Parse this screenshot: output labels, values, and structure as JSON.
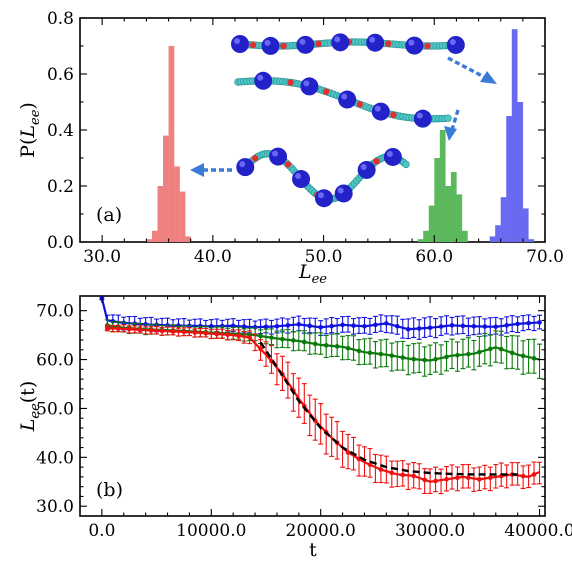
{
  "chart_data": [
    {
      "type": "histogram",
      "panel_label": "(a)",
      "xlabel_base": "L",
      "xlabel_sub": "ee",
      "ylabel_pre": "P(",
      "ylabel_base": "L",
      "ylabel_sub": "ee",
      "ylabel_post": ")",
      "xlim": [
        28,
        70
      ],
      "ylim": [
        0,
        0.8
      ],
      "xticks": [
        "30.0",
        "40.0",
        "50.0",
        "60.0",
        "70.0"
      ],
      "xtick_values": [
        30,
        40,
        50,
        60,
        70
      ],
      "yticks": [
        "0.0",
        "0.2",
        "0.4",
        "0.6",
        "0.8"
      ],
      "ytick_values": [
        0,
        0.2,
        0.4,
        0.6,
        0.8
      ],
      "bin_width": 0.5,
      "series": [
        {
          "color": "#f08080",
          "bins": [
            [
              34.0,
              0.01
            ],
            [
              34.5,
              0.04
            ],
            [
              35.0,
              0.2
            ],
            [
              35.5,
              0.38
            ],
            [
              36.0,
              0.7
            ],
            [
              36.5,
              0.27
            ],
            [
              37.0,
              0.18
            ],
            [
              37.5,
              0.02
            ]
          ]
        },
        {
          "color": "#5cb85c",
          "bins": [
            [
              58.5,
              0.01
            ],
            [
              59.0,
              0.04
            ],
            [
              59.5,
              0.13
            ],
            [
              60.0,
              0.3
            ],
            [
              60.5,
              0.4
            ],
            [
              61.0,
              0.2
            ],
            [
              61.5,
              0.25
            ],
            [
              62.0,
              0.17
            ],
            [
              62.5,
              0.04
            ]
          ]
        },
        {
          "color": "#6a6af0",
          "bins": [
            [
              65.0,
              0.02
            ],
            [
              65.5,
              0.06
            ],
            [
              66.0,
              0.16
            ],
            [
              66.5,
              0.45
            ],
            [
              67.0,
              0.76
            ],
            [
              67.5,
              0.5
            ],
            [
              68.0,
              0.12
            ],
            [
              68.5,
              0.01
            ]
          ]
        }
      ]
    },
    {
      "type": "line",
      "panel_label": "(b)",
      "xlabel": "t",
      "ylabel_base": "L",
      "ylabel_sub": "ee",
      "ylabel_post": "(t)",
      "xlim": [
        -2000,
        40500
      ],
      "ylim": [
        28,
        73
      ],
      "xticks": [
        "0.0",
        "10000.0",
        "20000.0",
        "30000.0",
        "40000.0"
      ],
      "xtick_values": [
        0,
        10000,
        20000,
        30000,
        40000
      ],
      "yticks": [
        "30.0",
        "40.0",
        "50.0",
        "60.0",
        "70.0"
      ],
      "ytick_values": [
        30,
        40,
        50,
        60,
        70
      ],
      "series": [
        {
          "color": "#1010e0",
          "x": [
            0,
            500,
            2000,
            4000,
            6000,
            8000,
            10000,
            12000,
            14000,
            16000,
            18000,
            20000,
            22000,
            24000,
            26000,
            28000,
            30000,
            32000,
            34000,
            36000,
            38000,
            40000
          ],
          "y": [
            72.5,
            68,
            67.5,
            67.2,
            67.0,
            66.9,
            66.8,
            66.9,
            66.6,
            66.8,
            67.2,
            66.6,
            67.1,
            66.8,
            67.4,
            66.2,
            66.5,
            67.0,
            66.8,
            66.7,
            67.3,
            67.6
          ],
          "err": [
            0.3,
            1.2,
            1.3,
            1.3,
            1.3,
            1.3,
            1.3,
            1.3,
            1.4,
            1.4,
            1.5,
            1.5,
            1.6,
            1.6,
            1.7,
            2.0,
            2.0,
            1.8,
            1.8,
            1.7,
            1.6,
            1.4
          ]
        },
        {
          "color": "#0a7a0a",
          "x": [
            500,
            2000,
            4000,
            6000,
            8000,
            10000,
            12000,
            14000,
            16000,
            18000,
            20000,
            22000,
            24000,
            26000,
            28000,
            30000,
            32000,
            34000,
            36000,
            38000,
            40000
          ],
          "y": [
            67,
            66.5,
            66.2,
            66.0,
            65.8,
            65.5,
            65.3,
            65.0,
            64.3,
            63.8,
            63.0,
            62.6,
            61.5,
            61.0,
            60.2,
            59.8,
            60.8,
            61.2,
            62.5,
            61.0,
            60.0
          ],
          "err": [
            1.0,
            1.0,
            1.0,
            1.0,
            1.0,
            1.1,
            1.2,
            1.3,
            1.7,
            2.0,
            2.2,
            2.4,
            2.6,
            2.8,
            3.0,
            3.0,
            3.0,
            3.0,
            3.2,
            3.4,
            3.5
          ]
        },
        {
          "color": "#f01010",
          "x": [
            500,
            2000,
            4000,
            6000,
            8000,
            10000,
            12000,
            13500,
            15000,
            16500,
            18000,
            19500,
            21000,
            22500,
            24000,
            25500,
            27000,
            28500,
            30000,
            31500,
            33000,
            34500,
            36000,
            37500,
            39000,
            40000
          ],
          "y": [
            66.4,
            66.3,
            66.0,
            65.8,
            65.6,
            65.3,
            65.0,
            64.5,
            61.0,
            57.0,
            52.0,
            47.5,
            44.0,
            41.0,
            39.0,
            37.5,
            36.5,
            36.2,
            35.0,
            35.5,
            36.0,
            35.5,
            36.0,
            36.5,
            36.0,
            37.0
          ],
          "err": [
            0.6,
            0.7,
            0.7,
            0.8,
            0.8,
            0.9,
            1.0,
            1.3,
            2.5,
            3.5,
            4.0,
            4.2,
            4.0,
            3.5,
            3.0,
            2.8,
            2.6,
            2.6,
            2.5,
            2.5,
            2.4,
            2.4,
            2.4,
            2.3,
            2.3,
            2.2
          ]
        },
        {
          "color": "#000000",
          "style": "dashed",
          "x": [
            14500,
            16000,
            18000,
            20000,
            22000,
            24000,
            26000,
            28000,
            30000,
            32000,
            34000,
            36000,
            38000
          ],
          "y": [
            63.5,
            58.5,
            51.5,
            46.0,
            42.0,
            39.5,
            38.0,
            37.2,
            36.8,
            36.6,
            36.5,
            36.5,
            36.5
          ]
        }
      ]
    }
  ]
}
